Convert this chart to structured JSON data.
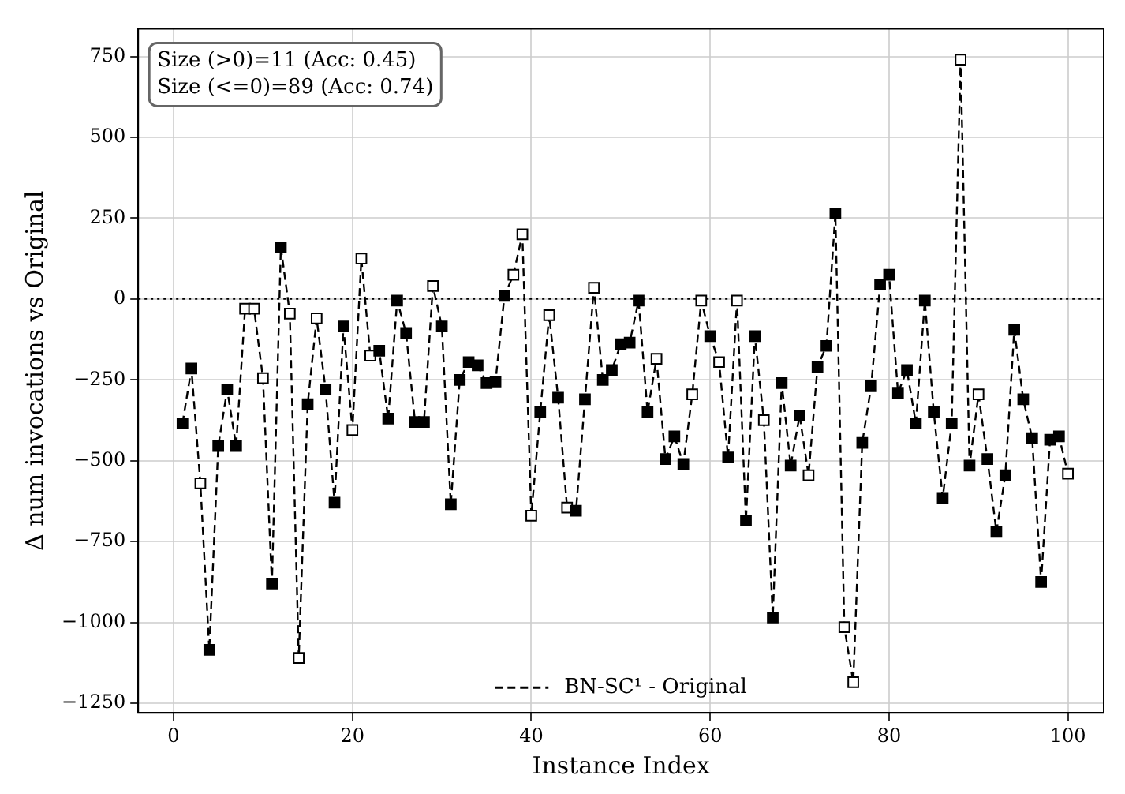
{
  "chart_data": {
    "type": "line",
    "xlabel": "Instance Index",
    "ylabel": "Δ num invocations vs Original",
    "annotations": [
      "Size (>0)=11 (Acc: 0.45)",
      "Size (<=0)=89 (Acc: 0.74)"
    ],
    "x": [
      1,
      2,
      3,
      4,
      5,
      6,
      7,
      8,
      9,
      10,
      11,
      12,
      13,
      14,
      15,
      16,
      17,
      18,
      19,
      20,
      21,
      22,
      23,
      24,
      25,
      26,
      27,
      28,
      29,
      30,
      31,
      32,
      33,
      34,
      35,
      36,
      37,
      38,
      39,
      40,
      41,
      42,
      43,
      44,
      45,
      46,
      47,
      48,
      49,
      50,
      51,
      52,
      53,
      54,
      55,
      56,
      57,
      58,
      59,
      60,
      61,
      62,
      63,
      64,
      65,
      66,
      67,
      68,
      69,
      70,
      71,
      72,
      73,
      74,
      75,
      76,
      77,
      78,
      79,
      80,
      81,
      82,
      83,
      84,
      85,
      86,
      87,
      88,
      89,
      90,
      91,
      92,
      93,
      94,
      95,
      96,
      97,
      98,
      99,
      100
    ],
    "series": [
      {
        "name": "BN-SC¹ - Original",
        "color": "#000000",
        "values": [
          -385,
          -215,
          -570,
          -1085,
          -455,
          -280,
          -455,
          -30,
          -30,
          -245,
          -880,
          160,
          -45,
          -1110,
          -325,
          -60,
          -280,
          -630,
          -85,
          -405,
          125,
          -175,
          -160,
          -370,
          -5,
          -105,
          -380,
          -380,
          40,
          -85,
          -635,
          -250,
          -195,
          -205,
          -260,
          -255,
          10,
          75,
          200,
          -670,
          -350,
          -50,
          -305,
          -645,
          -655,
          -310,
          35,
          -250,
          -220,
          -140,
          -135,
          -5,
          -350,
          -185,
          -495,
          -425,
          -510,
          -295,
          -5,
          -115,
          -195,
          -490,
          -5,
          -685,
          -115,
          -375,
          -985,
          -260,
          -515,
          -360,
          -545,
          -210,
          -145,
          265,
          -1015,
          -1185,
          -445,
          -270,
          45,
          75,
          -290,
          -220,
          -385,
          -5,
          -350,
          -615,
          -385,
          740,
          -515,
          -295,
          -495,
          -720,
          -545,
          -95,
          -310,
          -430,
          -875,
          -435,
          -425,
          -540
        ],
        "colors": [
          "#000000",
          "#000000",
          "#ffffff",
          "#000000",
          "#000000",
          "#000000",
          "#000000",
          "#ffffff",
          "#ffffff",
          "#ffffff",
          "#000000",
          "#000000",
          "#ffffff",
          "#ffffff",
          "#000000",
          "#ffffff",
          "#000000",
          "#000000",
          "#000000",
          "#ffffff",
          "#ffffff",
          "#ffffff",
          "#000000",
          "#000000",
          "#000000",
          "#000000",
          "#000000",
          "#000000",
          "#ffffff",
          "#000000",
          "#000000",
          "#000000",
          "#000000",
          "#000000",
          "#000000",
          "#000000",
          "#000000",
          "#ffffff",
          "#ffffff",
          "#ffffff",
          "#000000",
          "#ffffff",
          "#000000",
          "#ffffff",
          "#000000",
          "#000000",
          "#ffffff",
          "#000000",
          "#000000",
          "#000000",
          "#000000",
          "#000000",
          "#000000",
          "#ffffff",
          "#000000",
          "#000000",
          "#000000",
          "#ffffff",
          "#ffffff",
          "#000000",
          "#ffffff",
          "#000000",
          "#ffffff",
          "#000000",
          "#000000",
          "#ffffff",
          "#000000",
          "#000000",
          "#000000",
          "#000000",
          "#ffffff",
          "#000000",
          "#000000",
          "#000000",
          "#ffffff",
          "#ffffff",
          "#000000",
          "#000000",
          "#000000",
          "#000000",
          "#000000",
          "#000000",
          "#000000",
          "#000000",
          "#000000",
          "#000000",
          "#000000",
          "#ffffff",
          "#000000",
          "#ffffff",
          "#000000",
          "#000000",
          "#000000",
          "#000000",
          "#000000",
          "#000000",
          "#000000",
          "#000000",
          "#000000",
          "#ffffff"
        ]
      }
    ],
    "xlim": [
      -3.95,
      104
    ],
    "xticks": [
      0,
      20,
      40,
      60,
      80,
      100
    ],
    "ylim": [
      -1280,
      836
    ],
    "yticks": [
      {
        "value": -1250,
        "label": "−1250"
      },
      {
        "value": -1000,
        "label": "−1000"
      },
      {
        "value": -750,
        "label": "−750"
      },
      {
        "value": -500,
        "label": "−500"
      },
      {
        "value": -250,
        "label": "−250"
      },
      0,
      250,
      500,
      750
    ],
    "ref_lines": [
      {
        "axis": "y",
        "value": 0,
        "color": "#000000",
        "line_style": "dotted"
      }
    ],
    "grid": true,
    "legend": "bottom",
    "marker": "square",
    "line_style": "dashed"
  }
}
